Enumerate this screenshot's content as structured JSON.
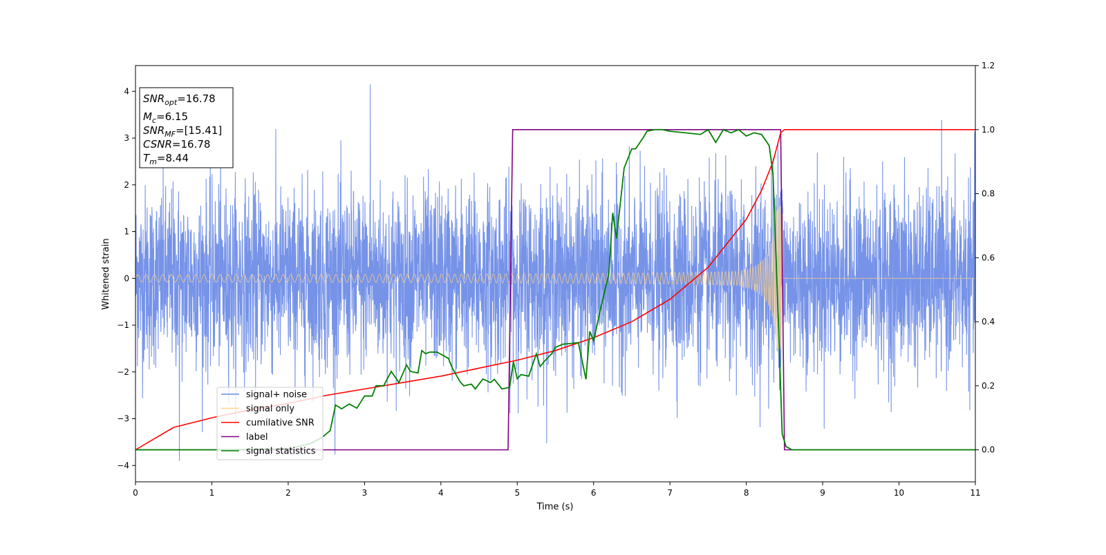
{
  "chart_data": {
    "type": "line",
    "xlabel": "Time (s)",
    "ylabel": "Whitened strain",
    "xlim": [
      0,
      11
    ],
    "ylim_left": [
      -4.35,
      4.55
    ],
    "ylim_right": [
      -0.1,
      1.2
    ],
    "x_ticks": [
      0,
      1,
      2,
      3,
      4,
      5,
      6,
      7,
      8,
      9,
      10,
      11
    ],
    "y_ticks_left": [
      -4,
      -3,
      -2,
      -1,
      0,
      1,
      2,
      3,
      4
    ],
    "y_ticks_right": [
      0.0,
      0.2,
      0.4,
      0.6,
      0.8,
      1.0,
      1.2
    ],
    "y_tick_labels_right": [
      "0.0",
      "0.2",
      "0.4",
      "0.6",
      "0.8",
      "1.0",
      "1.2"
    ],
    "grid": false,
    "legend_position": "lower-left",
    "legend": [
      {
        "name": "signal+ noise",
        "color": "#6a8ae6"
      },
      {
        "name": "signal only",
        "color": "#ffd08a"
      },
      {
        "name": "cumilative SNR",
        "color": "#ff0000"
      },
      {
        "name": "label",
        "color": "#800080"
      },
      {
        "name": "signal statistics",
        "color": "#008000"
      }
    ],
    "annotation": [
      {
        "base": "SNR",
        "sub": "opt",
        "value": "=16.78"
      },
      {
        "base": "M",
        "sub": "c",
        "value": "=6.15"
      },
      {
        "base": "SNR",
        "sub": "MF",
        "value": "=[15.41]"
      },
      {
        "base": "CSNR",
        "sub": "",
        "value": "=16.78"
      },
      {
        "base": "T",
        "sub": "m",
        "value": "=8.44"
      }
    ],
    "series": [
      {
        "name": "signal+ noise",
        "axis": "left",
        "color": "#6a8ae6",
        "description_values": {
          "t_start": 0,
          "t_end": 11,
          "sigma": 1.0,
          "typical_range": [
            -2.5,
            2.5
          ],
          "extremes": [
            -3.9,
            4.15
          ]
        }
      },
      {
        "name": "signal only",
        "axis": "left",
        "color": "#ffd08a",
        "chirp": {
          "t_start": 0,
          "t_merger": 8.48,
          "amplitude_start": 0.08,
          "amplitude_peak": 1.55
        }
      },
      {
        "name": "cumilative SNR",
        "axis": "right",
        "color": "#ff0000",
        "x": [
          0,
          0.5,
          1,
          1.5,
          2,
          2.5,
          3,
          3.5,
          4,
          4.5,
          5,
          5.5,
          6,
          6.5,
          7,
          7.5,
          8,
          8.2,
          8.35,
          8.45,
          8.5,
          11
        ],
        "y": [
          0.0,
          0.07,
          0.1,
          0.125,
          0.145,
          0.17,
          0.19,
          0.21,
          0.23,
          0.255,
          0.28,
          0.31,
          0.35,
          0.4,
          0.47,
          0.57,
          0.72,
          0.81,
          0.9,
          0.99,
          1.0,
          1.0
        ]
      },
      {
        "name": "label",
        "axis": "right",
        "color": "#800080",
        "x": [
          0,
          4.88,
          4.94,
          8.45,
          8.5,
          11
        ],
        "y": [
          0,
          0,
          1,
          1,
          0,
          0
        ]
      },
      {
        "name": "signal statistics",
        "axis": "right",
        "color": "#008000",
        "x": [
          0,
          1.0,
          2.0,
          2.3,
          2.45,
          2.55,
          2.62,
          2.7,
          2.8,
          2.9,
          3.0,
          3.1,
          3.15,
          3.25,
          3.35,
          3.45,
          3.55,
          3.6,
          3.7,
          3.75,
          3.8,
          3.85,
          3.95,
          4.05,
          4.1,
          4.15,
          4.25,
          4.3,
          4.4,
          4.45,
          4.55,
          4.65,
          4.7,
          4.8,
          4.9,
          4.95,
          5.0,
          5.05,
          5.15,
          5.25,
          5.3,
          5.35,
          5.45,
          5.5,
          5.6,
          5.7,
          5.8,
          5.9,
          5.95,
          6.0,
          6.1,
          6.2,
          6.25,
          6.3,
          6.35,
          6.4,
          6.5,
          6.55,
          6.65,
          6.7,
          6.8,
          6.9,
          7.0,
          7.2,
          7.4,
          7.5,
          7.6,
          7.7,
          7.8,
          7.9,
          8.0,
          8.1,
          8.2,
          8.3,
          8.35,
          8.42,
          8.47,
          8.52,
          8.6,
          9.0,
          11
        ],
        "y": [
          0,
          0,
          0.003,
          0.02,
          0.04,
          0.06,
          0.14,
          0.128,
          0.143,
          0.13,
          0.168,
          0.168,
          0.2,
          0.2,
          0.245,
          0.21,
          0.265,
          0.245,
          0.24,
          0.31,
          0.3,
          0.305,
          0.305,
          0.292,
          0.285,
          0.255,
          0.213,
          0.2,
          0.205,
          0.19,
          0.221,
          0.21,
          0.22,
          0.19,
          0.195,
          0.275,
          0.222,
          0.235,
          0.23,
          0.3,
          0.26,
          0.275,
          0.3,
          0.32,
          0.33,
          0.332,
          0.335,
          0.22,
          0.37,
          0.34,
          0.45,
          0.55,
          0.74,
          0.66,
          0.77,
          0.88,
          0.94,
          0.94,
          0.975,
          0.995,
          1.0,
          1.0,
          0.995,
          0.99,
          0.985,
          1.0,
          0.96,
          1.0,
          0.99,
          1.0,
          0.98,
          0.99,
          0.985,
          0.95,
          0.86,
          0.4,
          0.05,
          0.01,
          0.0,
          0.0,
          0.0
        ]
      }
    ]
  }
}
